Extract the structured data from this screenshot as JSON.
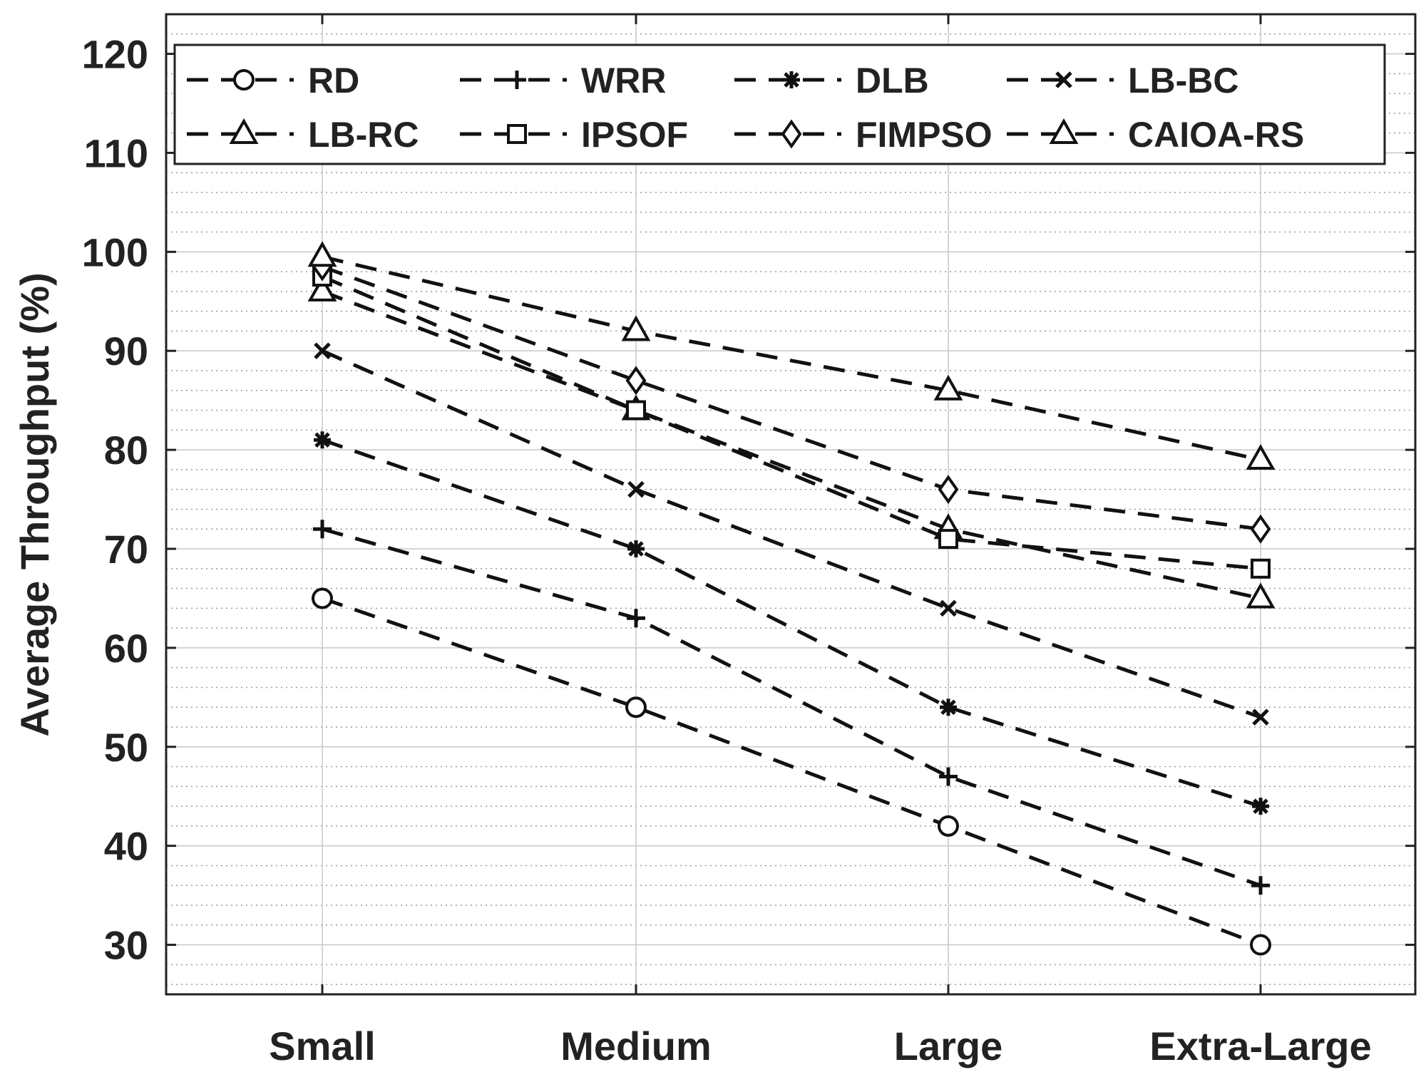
{
  "chart_data": {
    "type": "line",
    "title": "",
    "xlabel": "",
    "ylabel": "Average Throughput (%)",
    "categories": [
      "Small",
      "Medium",
      "Large",
      "Extra-Large"
    ],
    "ylim": [
      25,
      124
    ],
    "yticks": [
      30,
      40,
      50,
      60,
      70,
      80,
      90,
      100,
      110,
      120
    ],
    "grid": true,
    "legend_position": "top",
    "line_style": "dashed",
    "series": [
      {
        "name": "RD",
        "marker": "circle",
        "values": [
          65,
          54,
          42,
          30
        ]
      },
      {
        "name": "WRR",
        "marker": "plus",
        "values": [
          72,
          63,
          47,
          36
        ]
      },
      {
        "name": "DLB",
        "marker": "asterisk",
        "values": [
          81,
          70,
          54,
          44
        ]
      },
      {
        "name": "LB-BC",
        "marker": "x",
        "values": [
          90,
          76,
          64,
          53
        ]
      },
      {
        "name": "LB-RC",
        "marker": "triangle",
        "values": [
          96,
          84,
          72,
          65
        ]
      },
      {
        "name": "IPSOF",
        "marker": "square",
        "values": [
          97.5,
          84,
          71,
          68
        ]
      },
      {
        "name": "FIMPSO",
        "marker": "diamond",
        "values": [
          98.5,
          87,
          76,
          72
        ]
      },
      {
        "name": "CAIOA-RS",
        "marker": "triangle",
        "values": [
          99.5,
          92,
          86,
          79
        ]
      }
    ]
  }
}
